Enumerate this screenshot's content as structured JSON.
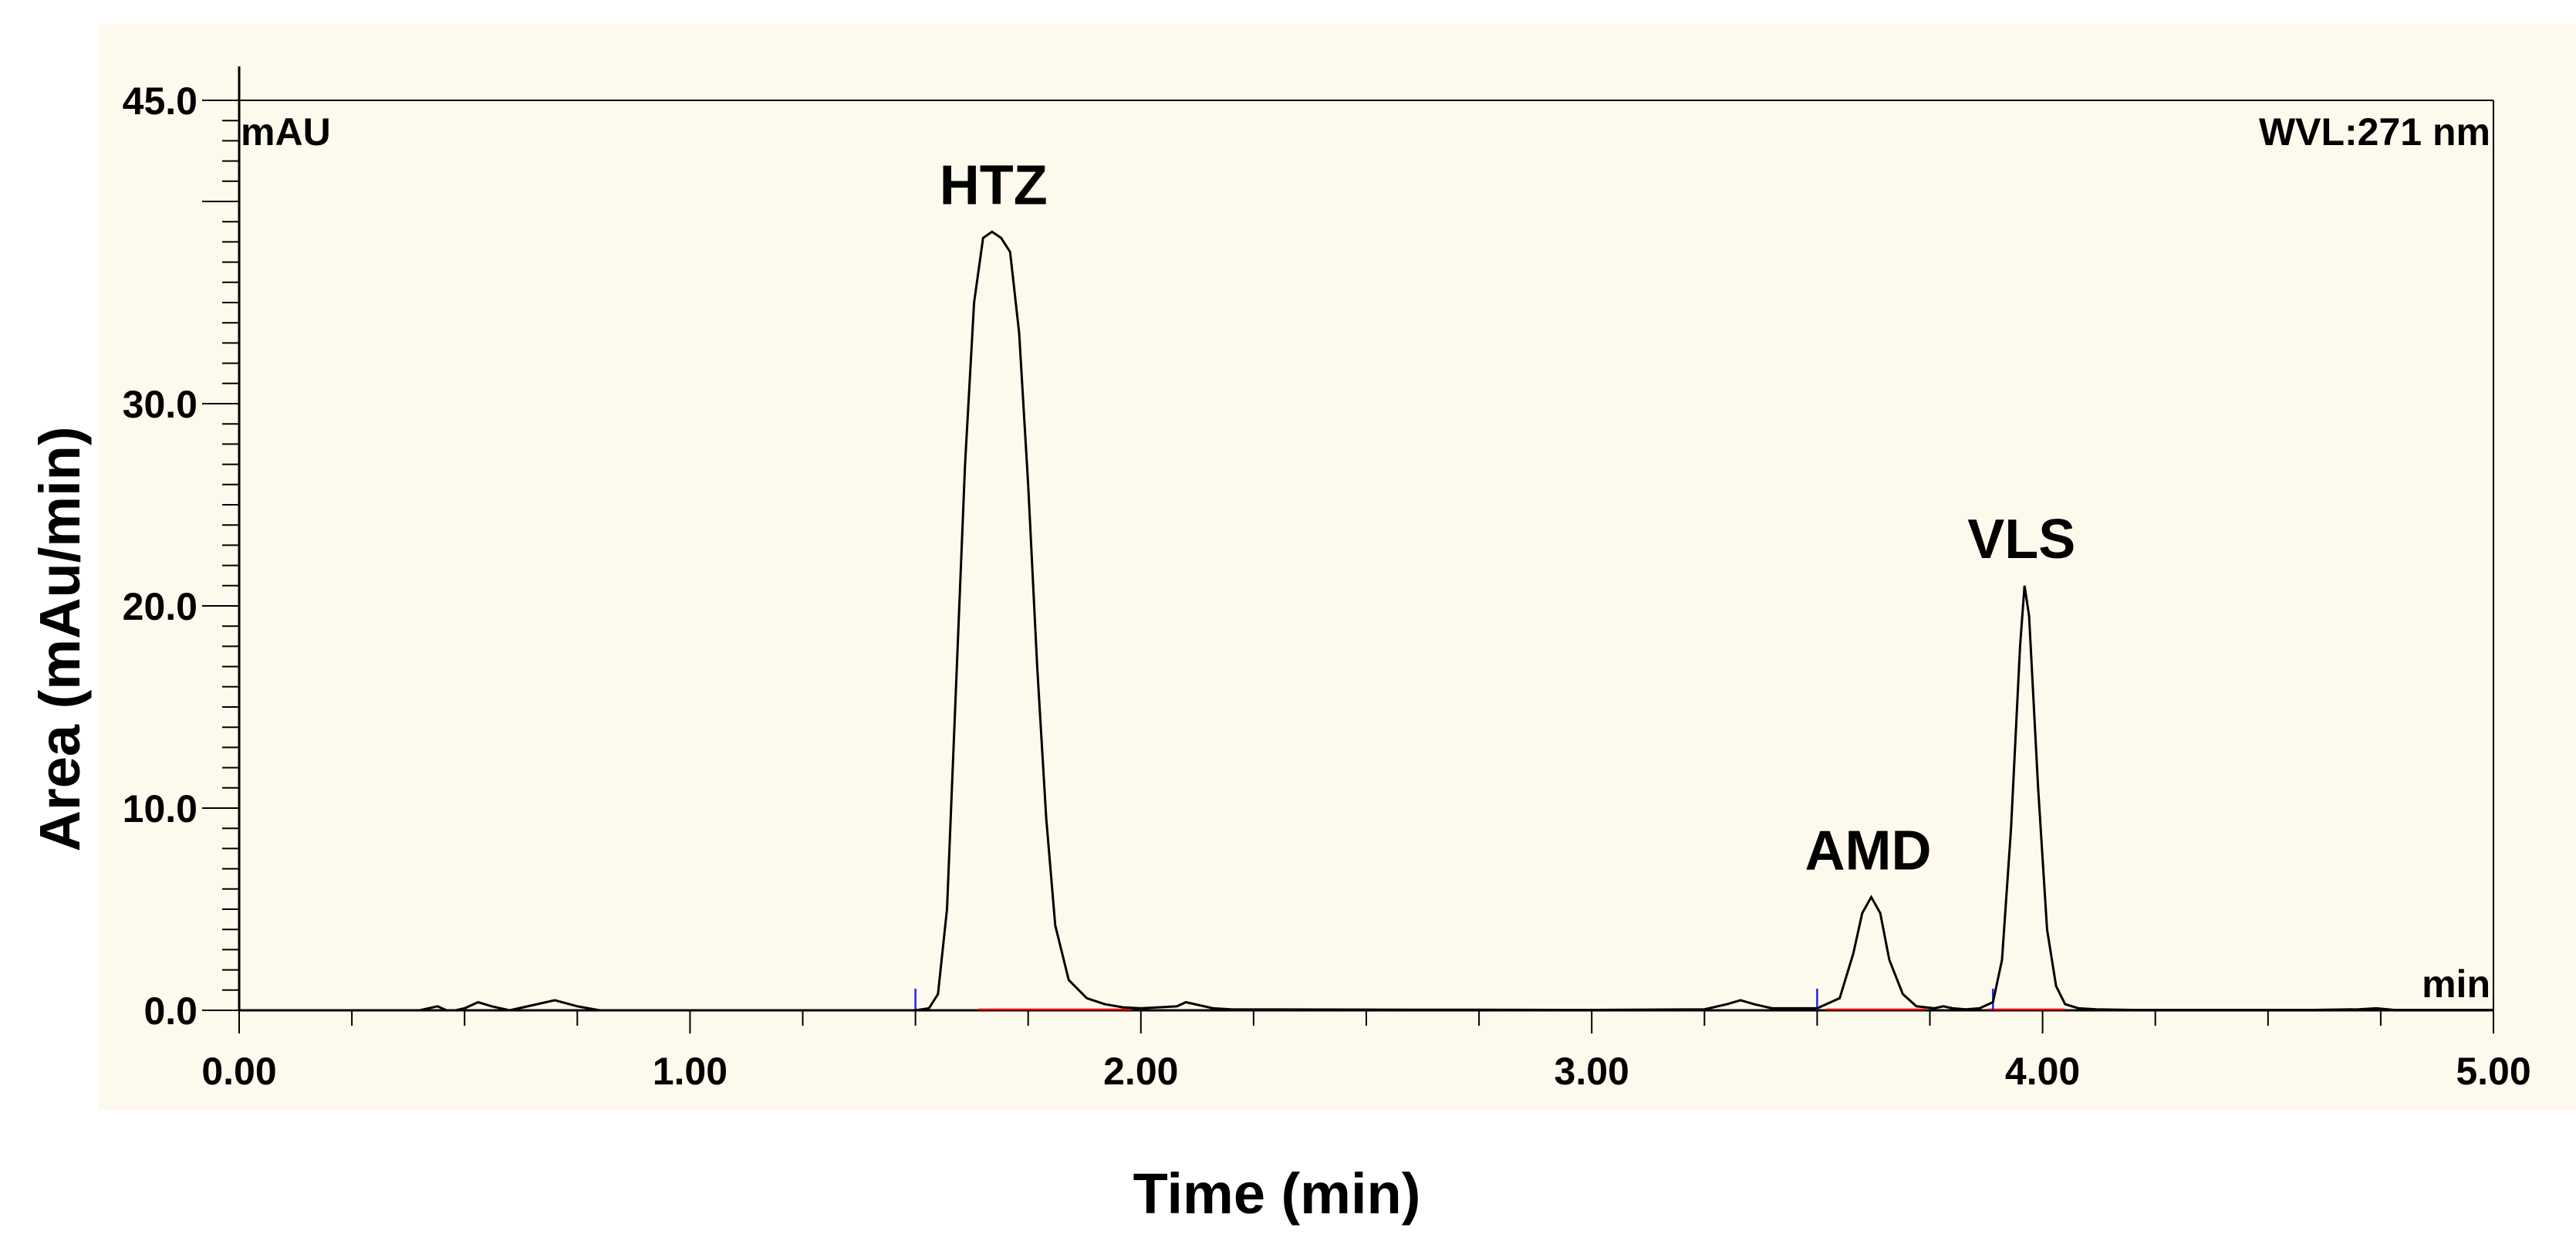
{
  "chart_data": {
    "type": "line",
    "title": "",
    "xlabel": "Time (min)",
    "ylabel": "Area (mAu/min)",
    "y_unit_label": "mAU",
    "x_unit_label": "min",
    "wavelength_label": "WVL:271 nm",
    "xlim": [
      0,
      5
    ],
    "ylim": [
      0,
      45
    ],
    "x_ticks": [
      "0.00",
      "1.00",
      "2.00",
      "3.00",
      "4.00",
      "5.00"
    ],
    "y_ticks": [
      "0.0",
      "10.0",
      "20.0",
      "30.0",
      "45.0"
    ],
    "grid": false,
    "colors": {
      "background": "#fdf9ec",
      "trace": "#000000",
      "baseline": "#e00000",
      "marker": "#2020ff"
    },
    "peaks": [
      {
        "name": "HTZ",
        "time": 1.68,
        "height": 38.5
      },
      {
        "name": "AMD",
        "time": 3.62,
        "height": 5.6
      },
      {
        "name": "VLS",
        "time": 3.96,
        "height": 21.0
      }
    ],
    "series": [
      {
        "x": [
          0,
          0.4,
          0.44,
          0.46,
          0.48,
          0.5,
          0.53,
          0.56,
          0.6,
          0.65,
          0.7,
          0.75,
          0.8,
          1.0,
          1.4,
          1.5,
          1.53,
          1.55,
          1.57,
          1.59,
          1.61,
          1.63,
          1.65,
          1.67,
          1.69,
          1.71,
          1.73,
          1.75,
          1.77,
          1.79,
          1.81,
          1.84,
          1.88,
          1.92,
          1.96,
          2.0,
          2.08,
          2.1,
          2.12,
          2.16,
          2.2,
          2.6,
          3.0,
          3.25,
          3.3,
          3.33,
          3.36,
          3.4,
          3.5,
          3.55,
          3.58,
          3.6,
          3.62,
          3.64,
          3.66,
          3.69,
          3.72,
          3.76,
          3.78,
          3.8,
          3.83,
          3.86,
          3.89,
          3.91,
          3.93,
          3.95,
          3.96,
          3.97,
          3.99,
          4.01,
          4.03,
          4.05,
          4.08,
          4.12,
          4.2,
          4.6,
          4.7,
          4.74,
          4.78,
          5.0
        ],
        "y": [
          0,
          0,
          0.2,
          0,
          0,
          0.1,
          0.4,
          0.2,
          0,
          0.25,
          0.5,
          0.2,
          0,
          0,
          0,
          0,
          0.1,
          0.8,
          5.0,
          16.0,
          27.0,
          35.0,
          38.2,
          38.5,
          38.2,
          37.5,
          33.5,
          26.0,
          17.0,
          9.5,
          4.2,
          1.5,
          0.6,
          0.3,
          0.15,
          0.1,
          0.2,
          0.4,
          0.3,
          0.1,
          0.05,
          0.03,
          0.02,
          0.05,
          0.3,
          0.5,
          0.3,
          0.1,
          0.1,
          0.6,
          2.8,
          4.8,
          5.6,
          4.8,
          2.5,
          0.8,
          0.2,
          0.1,
          0.2,
          0.1,
          0.05,
          0.1,
          0.4,
          2.5,
          9.0,
          18.0,
          21.0,
          19.5,
          11.0,
          4.0,
          1.2,
          0.3,
          0.1,
          0.05,
          0.02,
          0.02,
          0.05,
          0.1,
          0.02,
          0.02
        ]
      }
    ],
    "integration_baselines": [
      [
        1.64,
        1.98
      ],
      [
        3.52,
        3.74
      ],
      [
        3.88,
        4.05
      ]
    ],
    "integration_markers": [
      1.5,
      3.5,
      3.89
    ]
  }
}
